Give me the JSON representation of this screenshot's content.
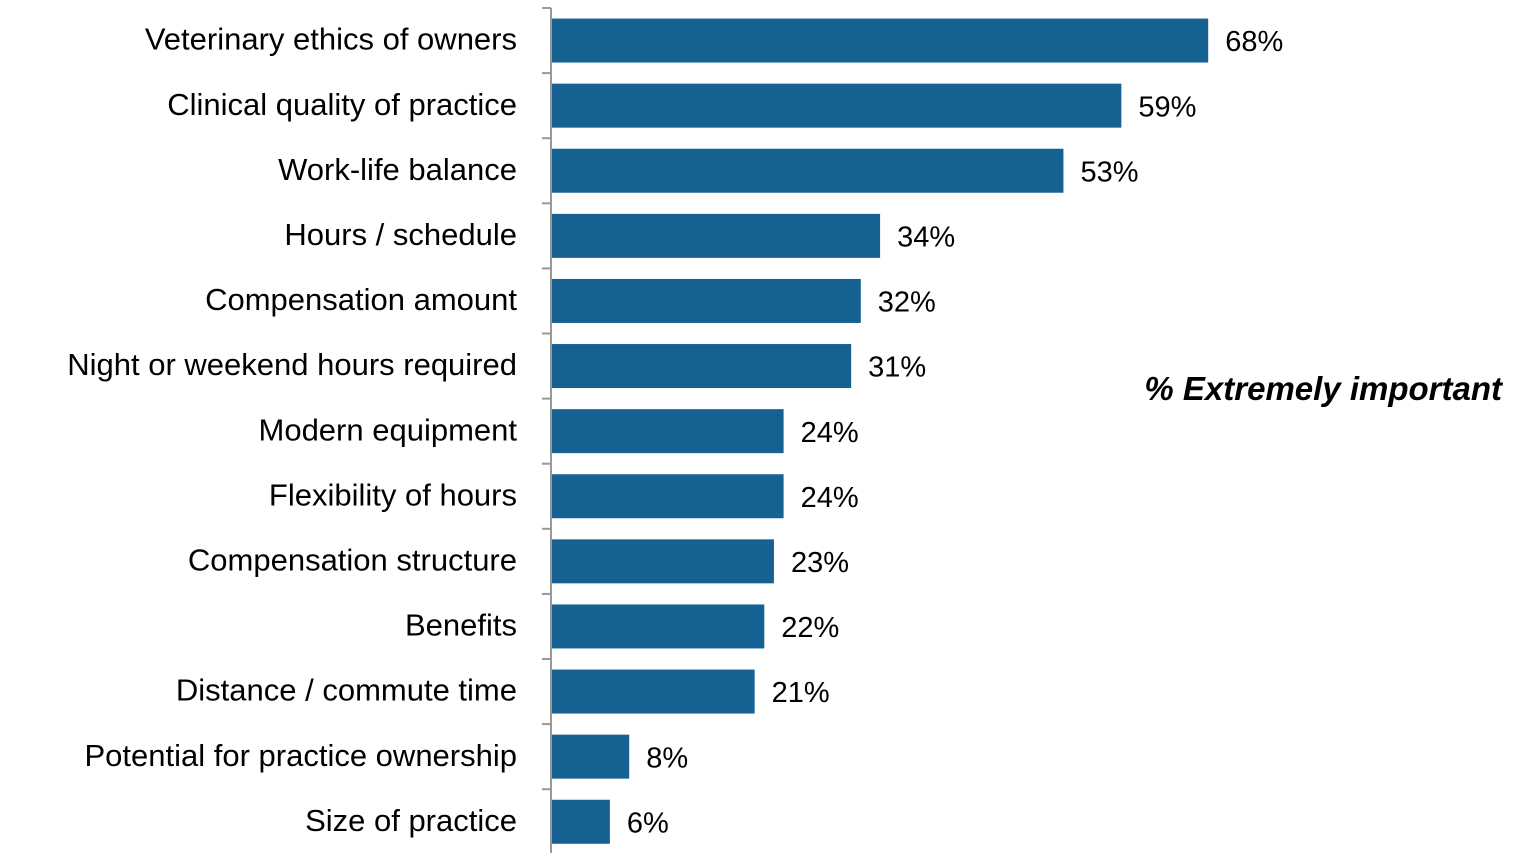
{
  "chart_data": {
    "type": "bar",
    "orientation": "horizontal",
    "categories": [
      "Veterinary ethics of owners",
      "Clinical quality of practice",
      "Work-life balance",
      "Hours / schedule",
      "Compensation amount",
      "Night or weekend hours required",
      "Modern equipment",
      "Flexibility of hours",
      "Compensation structure",
      "Benefits",
      "Distance / commute time",
      "Potential for practice ownership",
      "Size of practice"
    ],
    "values": [
      68,
      59,
      53,
      34,
      32,
      31,
      24,
      24,
      23,
      22,
      21,
      8,
      6
    ],
    "value_labels": [
      "68%",
      "59%",
      "53%",
      "34%",
      "32%",
      "31%",
      "24%",
      "24%",
      "23%",
      "22%",
      "21%",
      "8%",
      "6%"
    ],
    "series": [
      {
        "values": [
          68,
          59,
          53,
          34,
          32,
          31,
          24,
          24,
          23,
          22,
          21,
          8,
          6
        ]
      }
    ],
    "annotation": "% Extremely important",
    "title": "",
    "xlabel": "",
    "ylabel": "",
    "xlim": [
      0,
      100
    ],
    "grid": false,
    "bar_color": "#156192"
  }
}
